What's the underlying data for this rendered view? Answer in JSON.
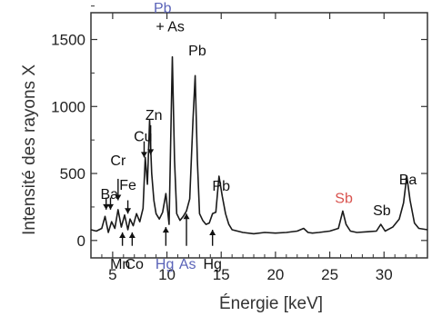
{
  "chart_data": {
    "type": "line",
    "title": "",
    "xlabel": "Énergie [keV]",
    "ylabel": "Intensité des rayons X",
    "xlim": [
      3,
      34
    ],
    "ylim": [
      -130,
      1700
    ],
    "xticks": [
      5,
      10,
      15,
      20,
      25,
      30
    ],
    "yticks": [
      0,
      500,
      1000,
      1500
    ],
    "grid": false,
    "series": [
      {
        "x": [
          3,
          3.5,
          4,
          4.3,
          4.6,
          4.9,
          5.2,
          5.5,
          5.8,
          6.1,
          6.4,
          6.6,
          6.9,
          7.2,
          7.5,
          7.8,
          8.0,
          8.2,
          8.4,
          8.6,
          8.8,
          9.0,
          9.3,
          9.6,
          9.9,
          10.2,
          10.5,
          10.7,
          10.9,
          11.2,
          11.5,
          11.8,
          12.1,
          12.4,
          12.6,
          12.8,
          13.0,
          13.3,
          13.6,
          13.9,
          14.2,
          14.5,
          14.8,
          15.1,
          15.4,
          15.7,
          16.0,
          17,
          18,
          19,
          20,
          21,
          22,
          22.6,
          23.0,
          23.4,
          24,
          25,
          25.8,
          26.2,
          26.5,
          26.9,
          27.5,
          28.5,
          29.3,
          29.7,
          30.1,
          30.8,
          31.4,
          31.8,
          32.1,
          32.4,
          32.8,
          33.2,
          34
        ],
        "y": [
          80,
          70,
          90,
          180,
          60,
          140,
          90,
          230,
          100,
          190,
          80,
          160,
          110,
          200,
          140,
          240,
          620,
          420,
          900,
          500,
          300,
          200,
          160,
          210,
          350,
          120,
          1370,
          600,
          200,
          150,
          180,
          220,
          310,
          900,
          1230,
          600,
          200,
          150,
          120,
          130,
          200,
          210,
          480,
          330,
          200,
          120,
          80,
          60,
          50,
          60,
          55,
          60,
          70,
          90,
          60,
          55,
          60,
          70,
          90,
          220,
          120,
          70,
          60,
          65,
          70,
          120,
          70,
          100,
          160,
          280,
          480,
          300,
          130,
          90,
          80
        ]
      }
    ],
    "annotations": [
      {
        "text": "Ba",
        "x": 4.7,
        "y": 310,
        "color": "#111111"
      },
      {
        "text": "Cr",
        "x": 5.5,
        "y": 560,
        "color": "#111111"
      },
      {
        "text": "Fe",
        "x": 6.4,
        "y": 380,
        "color": "#111111"
      },
      {
        "text": "Cu",
        "x": 7.8,
        "y": 740,
        "color": "#111111"
      },
      {
        "text": "Zn",
        "x": 8.8,
        "y": 900,
        "color": "#111111"
      },
      {
        "text": "Pb",
        "x": 9.6,
        "y": 1700,
        "color": "#5a63b8"
      },
      {
        "text": "+ As",
        "x": 10.3,
        "y": 1560,
        "color": "#111111"
      },
      {
        "text": "Pb",
        "x": 12.8,
        "y": 1380,
        "color": "#111111"
      },
      {
        "text": "Pb",
        "x": 15.0,
        "y": 370,
        "color": "#111111"
      },
      {
        "text": "Sb",
        "x": 26.3,
        "y": 280,
        "color": "#d9534f"
      },
      {
        "text": "Sb",
        "x": 29.8,
        "y": 190,
        "color": "#111111"
      },
      {
        "text": "Ba",
        "x": 32.2,
        "y": 420,
        "color": "#111111"
      },
      {
        "text": "Mn",
        "x": 5.7,
        "y": -210,
        "color": "#111111"
      },
      {
        "text": "Co",
        "x": 7.0,
        "y": -210,
        "color": "#111111"
      },
      {
        "text": "Hg",
        "x": 9.8,
        "y": -210,
        "color": "#5a63b8"
      },
      {
        "text": "As",
        "x": 11.9,
        "y": -210,
        "color": "#5a63b8"
      },
      {
        "text": "Hg",
        "x": 14.2,
        "y": -210,
        "color": "#111111"
      }
    ],
    "arrows": [
      {
        "x": 4.4,
        "from": 320,
        "to": 230,
        "dir": "down"
      },
      {
        "x": 4.8,
        "from": 320,
        "to": 230,
        "dir": "down"
      },
      {
        "x": 5.5,
        "from": 460,
        "to": 300,
        "dir": "down"
      },
      {
        "x": 6.4,
        "from": 300,
        "to": 200,
        "dir": "down"
      },
      {
        "x": 7.9,
        "from": 740,
        "to": 620,
        "dir": "down"
      },
      {
        "x": 8.5,
        "from": 860,
        "to": 640,
        "dir": "down"
      },
      {
        "x": 5.9,
        "from": -40,
        "to": 60,
        "dir": "up"
      },
      {
        "x": 6.8,
        "from": -40,
        "to": 60,
        "dir": "up"
      },
      {
        "x": 9.9,
        "from": -40,
        "to": 100,
        "dir": "up"
      },
      {
        "x": 11.8,
        "from": -40,
        "to": 200,
        "dir": "up"
      },
      {
        "x": 14.2,
        "from": -40,
        "to": 80,
        "dir": "up"
      }
    ],
    "colors": {
      "line": "#1a1a1a",
      "axis": "#333333"
    }
  }
}
